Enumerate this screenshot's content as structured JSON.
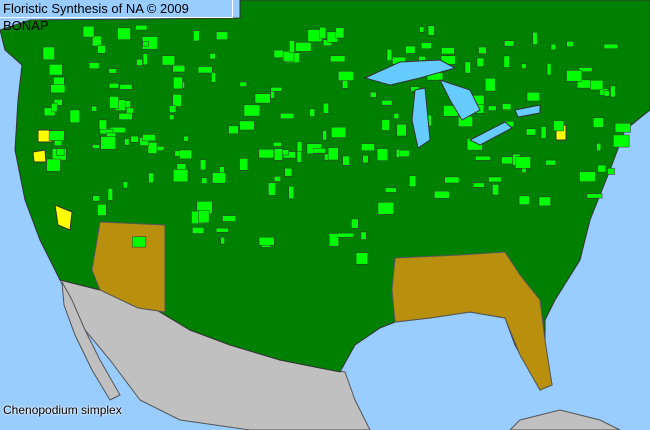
{
  "header": {
    "title": "Floristic Synthesis of NA © 2009 BONAP"
  },
  "species": {
    "name": "Chenopodium simplex"
  },
  "colors": {
    "ocean": "#99ccff",
    "state_present_native": "#008000",
    "county_present_native": "#00ff00",
    "state_present_adventive": "#b8900e",
    "county_present_rare": "#ffff00",
    "non_us_land": "#c0c0c0",
    "lakes": "#66ccff"
  }
}
